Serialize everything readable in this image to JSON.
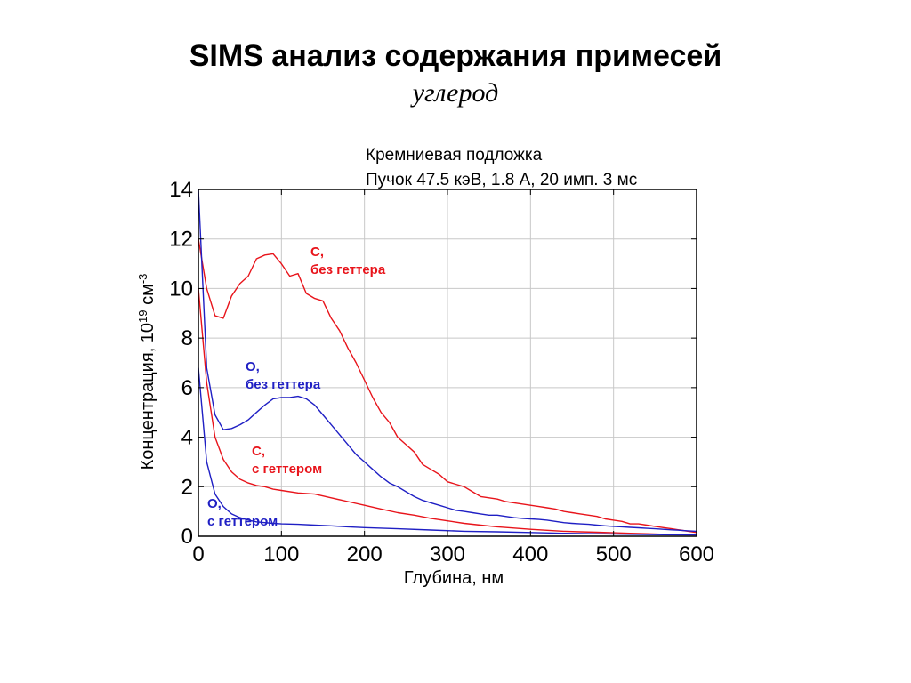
{
  "slide": {
    "title": "SIMS анализ содержания примесей",
    "subtitle": "углерод"
  },
  "chart_data": {
    "type": "line",
    "notes": [
      "Кремниевая подложка",
      "Пучок 47.5 кэВ, 1.8 А, 20 имп. 3 мс"
    ],
    "xlabel": "Глубина, нм",
    "ylabel": "Концентрация, 10",
    "ylabel_exp": "19",
    "ylabel_unit": " см",
    "ylabel_unit_exp": "-3",
    "xlim": [
      0,
      600
    ],
    "ylim": [
      0,
      14
    ],
    "xticks": [
      0,
      100,
      200,
      300,
      400,
      500,
      600
    ],
    "yticks": [
      0,
      2,
      4,
      6,
      8,
      10,
      12,
      14
    ],
    "grid": true,
    "series": [
      {
        "name": "C, без геттера",
        "label_lines": [
          "C,",
          "без геттера"
        ],
        "color": "#e8141b",
        "x": [
          0,
          10,
          20,
          30,
          40,
          50,
          60,
          70,
          80,
          90,
          100,
          110,
          120,
          130,
          140,
          150,
          160,
          170,
          180,
          190,
          200,
          210,
          220,
          230,
          240,
          250,
          260,
          270,
          280,
          290,
          300,
          310,
          320,
          330,
          340,
          350,
          360,
          370,
          380,
          390,
          400,
          410,
          420,
          430,
          440,
          450,
          460,
          470,
          480,
          490,
          500,
          510,
          520,
          530,
          540,
          550,
          560,
          570,
          580,
          590,
          600
        ],
        "y": [
          12,
          10,
          8.9,
          8.8,
          9.7,
          10.2,
          10.5,
          11.2,
          11.35,
          11.4,
          11.0,
          10.5,
          10.6,
          9.8,
          9.6,
          9.5,
          8.8,
          8.3,
          7.6,
          7.0,
          6.3,
          5.6,
          5.0,
          4.6,
          4.0,
          3.7,
          3.4,
          2.9,
          2.7,
          2.5,
          2.2,
          2.1,
          2.0,
          1.8,
          1.6,
          1.55,
          1.5,
          1.4,
          1.35,
          1.3,
          1.25,
          1.2,
          1.15,
          1.1,
          1.0,
          0.95,
          0.9,
          0.85,
          0.8,
          0.7,
          0.65,
          0.6,
          0.5,
          0.5,
          0.45,
          0.4,
          0.35,
          0.3,
          0.25,
          0.2,
          0.15
        ]
      },
      {
        "name": "O, без геттера",
        "label_lines": [
          "O,",
          "без геттера"
        ],
        "color": "#1f1fc4",
        "x": [
          0,
          10,
          20,
          30,
          40,
          50,
          60,
          70,
          80,
          90,
          100,
          110,
          120,
          130,
          140,
          150,
          160,
          170,
          180,
          190,
          200,
          210,
          220,
          230,
          240,
          250,
          260,
          270,
          280,
          290,
          300,
          310,
          320,
          330,
          340,
          350,
          360,
          370,
          380,
          390,
          400,
          410,
          420,
          430,
          440,
          450,
          460,
          470,
          480,
          490,
          500,
          510,
          520,
          530,
          540,
          550,
          560,
          570,
          580,
          590,
          600
        ],
        "y": [
          14,
          6.8,
          4.9,
          4.3,
          4.35,
          4.5,
          4.7,
          5.0,
          5.3,
          5.55,
          5.6,
          5.6,
          5.65,
          5.55,
          5.3,
          4.9,
          4.5,
          4.1,
          3.7,
          3.3,
          3.0,
          2.7,
          2.4,
          2.15,
          2.0,
          1.8,
          1.6,
          1.45,
          1.35,
          1.25,
          1.15,
          1.05,
          1.0,
          0.95,
          0.9,
          0.85,
          0.85,
          0.8,
          0.75,
          0.72,
          0.7,
          0.68,
          0.65,
          0.6,
          0.55,
          0.52,
          0.5,
          0.48,
          0.45,
          0.42,
          0.4,
          0.38,
          0.36,
          0.34,
          0.32,
          0.3,
          0.28,
          0.26,
          0.24,
          0.22,
          0.2
        ]
      },
      {
        "name": "C, с геттером",
        "label_lines": [
          "C,",
          "с геттером"
        ],
        "color": "#e8141b",
        "x": [
          0,
          10,
          20,
          30,
          40,
          50,
          60,
          70,
          80,
          90,
          100,
          120,
          140,
          160,
          180,
          200,
          220,
          240,
          260,
          280,
          300,
          320,
          340,
          360,
          380,
          400,
          420,
          440,
          460,
          480,
          500,
          520,
          540,
          560,
          580,
          600
        ],
        "y": [
          10,
          6.2,
          4.0,
          3.1,
          2.6,
          2.3,
          2.15,
          2.05,
          2.0,
          1.9,
          1.85,
          1.75,
          1.7,
          1.55,
          1.4,
          1.25,
          1.1,
          0.95,
          0.85,
          0.72,
          0.62,
          0.52,
          0.45,
          0.38,
          0.33,
          0.28,
          0.24,
          0.2,
          0.18,
          0.16,
          0.14,
          0.12,
          0.1,
          0.08,
          0.07,
          0.06
        ]
      },
      {
        "name": "O, с геттером",
        "label_lines": [
          "O,",
          "с геттером"
        ],
        "color": "#1f1fc4",
        "x": [
          0,
          10,
          20,
          30,
          40,
          50,
          60,
          70,
          80,
          90,
          100,
          120,
          140,
          160,
          180,
          200,
          240,
          280,
          320,
          360,
          400,
          440,
          480,
          520,
          560,
          600
        ],
        "y": [
          6.8,
          3.0,
          1.7,
          1.2,
          0.9,
          0.75,
          0.65,
          0.58,
          0.55,
          0.52,
          0.5,
          0.48,
          0.45,
          0.42,
          0.38,
          0.35,
          0.3,
          0.25,
          0.2,
          0.18,
          0.15,
          0.12,
          0.1,
          0.08,
          0.06,
          0.05
        ]
      }
    ]
  }
}
